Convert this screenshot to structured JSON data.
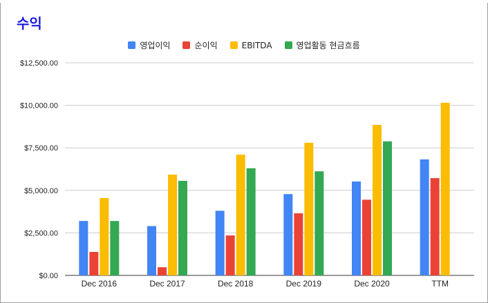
{
  "chart_data": {
    "type": "bar",
    "title": "수익",
    "categories": [
      "Dec 2016",
      "Dec 2017",
      "Dec 2018",
      "Dec 2019",
      "Dec 2020",
      "TTM"
    ],
    "series": [
      {
        "name": "영업이익",
        "color": "#4285f4",
        "values": [
          3200,
          2900,
          3800,
          4780,
          5520,
          6820
        ]
      },
      {
        "name": "순이익",
        "color": "#ea4335",
        "values": [
          1380,
          480,
          2350,
          3650,
          4450,
          5720
        ]
      },
      {
        "name": "EBITDA",
        "color": "#fbbc04",
        "values": [
          4550,
          5930,
          7100,
          7800,
          8850,
          10150
        ]
      },
      {
        "name": "영업활동 현금흐름",
        "color": "#34a853",
        "values": [
          3200,
          5560,
          6300,
          6120,
          7880,
          null
        ]
      }
    ],
    "yticks": [
      "$0.00",
      "$2,500.00",
      "$5,000.00",
      "$7,500.00",
      "$10,000.00",
      "$12,500.00"
    ],
    "ytick_values": [
      0,
      2500,
      5000,
      7500,
      10000,
      12500
    ],
    "ylim": [
      0,
      12500
    ],
    "grid": true,
    "legend_position": "top-center",
    "xlabel": "",
    "ylabel": ""
  }
}
